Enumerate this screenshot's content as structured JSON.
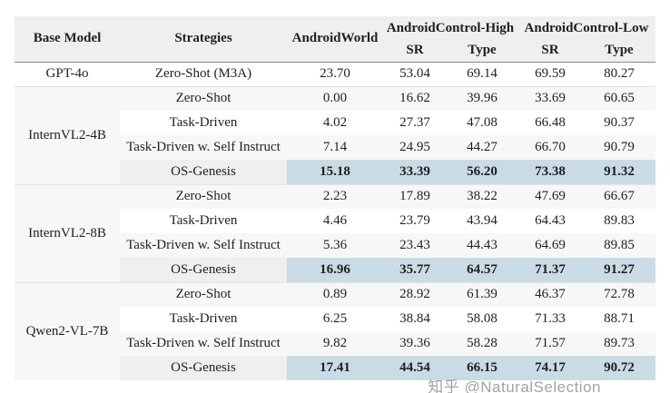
{
  "page": {
    "watermark": "知乎 @NaturalSelection",
    "bottom_bar_color": "#3c72d8"
  },
  "table": {
    "highlight_color": "#c9dce5",
    "header": {
      "base_model": "Base Model",
      "strategies": "Strategies",
      "androidworld": "AndroidWorld",
      "android_control_high": "AndroidControl-High",
      "android_control_low": "AndroidControl-Low",
      "sr_high": "SR",
      "type_high": "Type",
      "sr_low": "SR",
      "type_low": "Type"
    },
    "groups": [
      {
        "model": "GPT-4o",
        "rows": [
          {
            "strategy": "Zero-Shot (M3A)",
            "values": [
              "23.70",
              "53.04",
              "69.14",
              "69.59",
              "80.27"
            ],
            "highlight": false
          }
        ]
      },
      {
        "model": "InternVL2-4B",
        "rows": [
          {
            "strategy": "Zero-Shot",
            "values": [
              "0.00",
              "16.62",
              "39.96",
              "33.69",
              "60.65"
            ],
            "highlight": false
          },
          {
            "strategy": "Task-Driven",
            "values": [
              "4.02",
              "27.37",
              "47.08",
              "66.48",
              "90.37"
            ],
            "highlight": false
          },
          {
            "strategy": "Task-Driven w. Self Instruct",
            "values": [
              "7.14",
              "24.95",
              "44.27",
              "66.70",
              "90.79"
            ],
            "highlight": false
          },
          {
            "strategy": "OS-Genesis",
            "values": [
              "15.18",
              "33.39",
              "56.20",
              "73.38",
              "91.32"
            ],
            "highlight": true
          }
        ]
      },
      {
        "model": "InternVL2-8B",
        "rows": [
          {
            "strategy": "Zero-Shot",
            "values": [
              "2.23",
              "17.89",
              "38.22",
              "47.69",
              "66.67"
            ],
            "highlight": false
          },
          {
            "strategy": "Task-Driven",
            "values": [
              "4.46",
              "23.79",
              "43.94",
              "64.43",
              "89.83"
            ],
            "highlight": false
          },
          {
            "strategy": "Task-Driven w. Self Instruct",
            "values": [
              "5.36",
              "23.43",
              "44.43",
              "64.69",
              "89.85"
            ],
            "highlight": false
          },
          {
            "strategy": "OS-Genesis",
            "values": [
              "16.96",
              "35.77",
              "64.57",
              "71.37",
              "91.27"
            ],
            "highlight": true
          }
        ]
      },
      {
        "model": "Qwen2-VL-7B",
        "rows": [
          {
            "strategy": "Zero-Shot",
            "values": [
              "0.89",
              "28.92",
              "61.39",
              "46.37",
              "72.78"
            ],
            "highlight": false
          },
          {
            "strategy": "Task-Driven",
            "values": [
              "6.25",
              "38.84",
              "58.08",
              "71.33",
              "88.71"
            ],
            "highlight": false
          },
          {
            "strategy": "Task-Driven w. Self Instruct",
            "values": [
              "9.82",
              "39.36",
              "58.28",
              "71.57",
              "89.73"
            ],
            "highlight": false
          },
          {
            "strategy": "OS-Genesis",
            "values": [
              "17.41",
              "44.54",
              "66.15",
              "74.17",
              "90.72"
            ],
            "highlight": true
          }
        ]
      }
    ]
  }
}
